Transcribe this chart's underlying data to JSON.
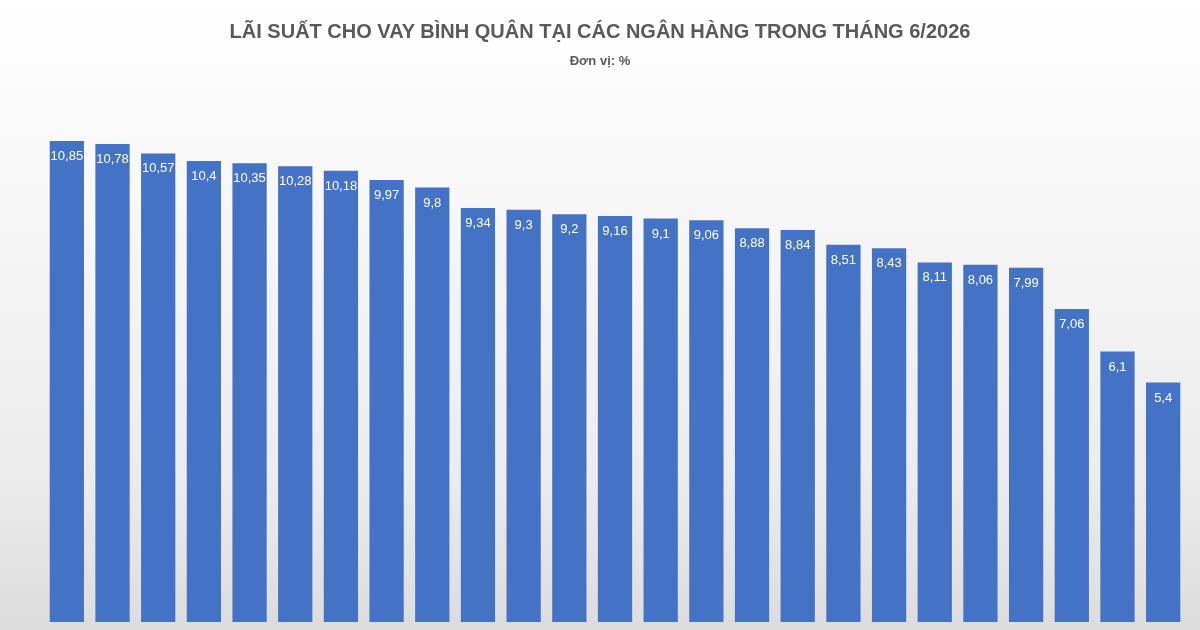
{
  "chart_data": {
    "type": "bar",
    "title": "LÃI SUẤT CHO VAY BÌNH QUÂN TẠI CÁC NGÂN HÀNG TRONG THÁNG 6/2026",
    "subtitle": "Đơn vị: %",
    "categories": [
      null,
      null,
      null,
      null,
      null,
      null,
      null,
      null,
      null,
      null,
      null,
      null,
      null,
      null,
      null,
      null,
      null,
      null,
      null,
      null,
      null,
      null,
      null,
      null,
      null
    ],
    "values": [
      10.85,
      10.78,
      10.57,
      10.4,
      10.35,
      10.28,
      10.18,
      9.97,
      9.8,
      9.34,
      9.3,
      9.2,
      9.16,
      9.1,
      9.06,
      8.88,
      8.84,
      8.51,
      8.43,
      8.11,
      8.06,
      7.99,
      7.06,
      6.1,
      5.4
    ],
    "value_labels": [
      "10,85",
      "10,78",
      "10,57",
      "10,4",
      "10,35",
      "10,28",
      "10,18",
      "9,97",
      "9,8",
      "9,34",
      "9,3",
      "9,2",
      "9,16",
      "9,1",
      "9,06",
      "8,88",
      "8,84",
      "8,51",
      "8,43",
      "8,11",
      "8,06",
      "7,99",
      "7,06",
      "6,1",
      "5,4"
    ],
    "color": "#4472c4"
  }
}
